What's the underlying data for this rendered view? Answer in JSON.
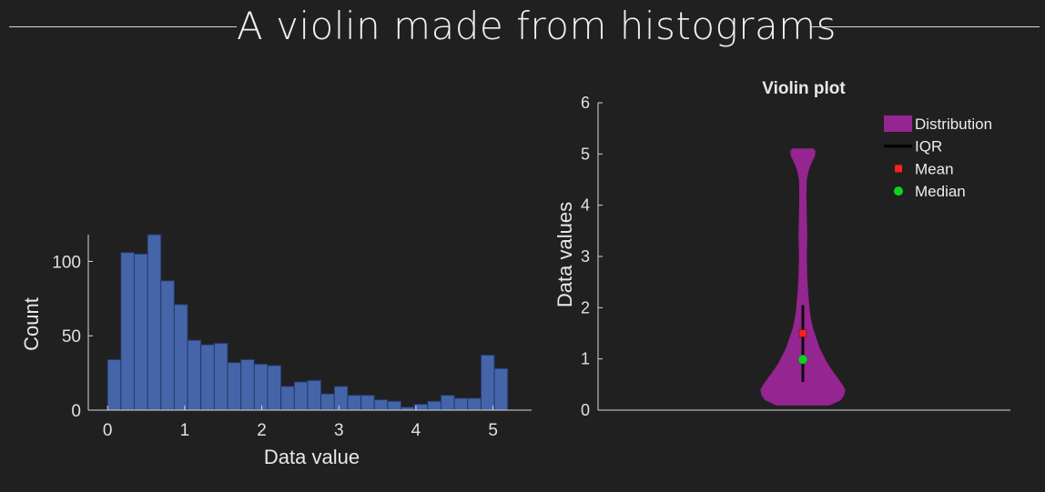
{
  "page": {
    "title": "A violin made from histograms"
  },
  "colors": {
    "background": "#202020",
    "histogram_bar": "#4565a8",
    "histogram_edge": "#23376a",
    "violin": "#952591",
    "iqr": "#0a0a0a",
    "mean": "#ff2020",
    "median": "#10d020",
    "axis": "#d8d8d8"
  },
  "chart_data": [
    {
      "type": "bar",
      "name": "histogram",
      "title": "",
      "xlabel": "Data value",
      "ylabel": "Count",
      "xlim": [
        -0.25,
        5.5
      ],
      "ylim": [
        0,
        118
      ],
      "x_ticks": [
        0,
        1,
        2,
        3,
        4,
        5
      ],
      "y_ticks": [
        0,
        50,
        100
      ],
      "bin_width": 0.173,
      "bin_start": 0,
      "values": [
        34,
        106,
        105,
        118,
        87,
        71,
        47,
        44,
        45,
        32,
        34,
        31,
        30,
        16,
        19,
        20,
        11,
        16,
        10,
        10,
        7,
        6,
        2,
        4,
        6,
        10,
        8,
        8,
        37,
        28
      ],
      "grid": false
    },
    {
      "type": "violin",
      "name": "violin",
      "title": "Violin plot",
      "xlabel": "",
      "ylabel": "Data values",
      "ylim": [
        0,
        6
      ],
      "y_ticks": [
        0,
        1,
        2,
        3,
        4,
        5,
        6
      ],
      "profile_y": [
        0.1,
        0.2,
        0.3,
        0.4,
        0.5,
        0.6,
        0.7,
        0.8,
        0.9,
        1.0,
        1.2,
        1.4,
        1.6,
        1.8,
        2.0,
        2.3,
        2.6,
        3.0,
        3.4,
        3.8,
        4.2,
        4.5,
        4.7,
        4.85,
        4.95,
        5.05,
        5.1
      ],
      "profile_halfwidth": [
        0.6,
        0.86,
        0.94,
        0.96,
        0.89,
        0.81,
        0.72,
        0.64,
        0.56,
        0.5,
        0.38,
        0.3,
        0.22,
        0.17,
        0.14,
        0.11,
        0.09,
        0.08,
        0.09,
        0.08,
        0.07,
        0.08,
        0.13,
        0.2,
        0.26,
        0.28,
        0.24
      ],
      "iqr": [
        0.55,
        2.05
      ],
      "mean": 1.5,
      "median": 0.99,
      "legend": [
        "Distribution",
        "IQR",
        "Mean",
        "Median"
      ],
      "legend_placement": "top-right",
      "grid": false
    }
  ]
}
